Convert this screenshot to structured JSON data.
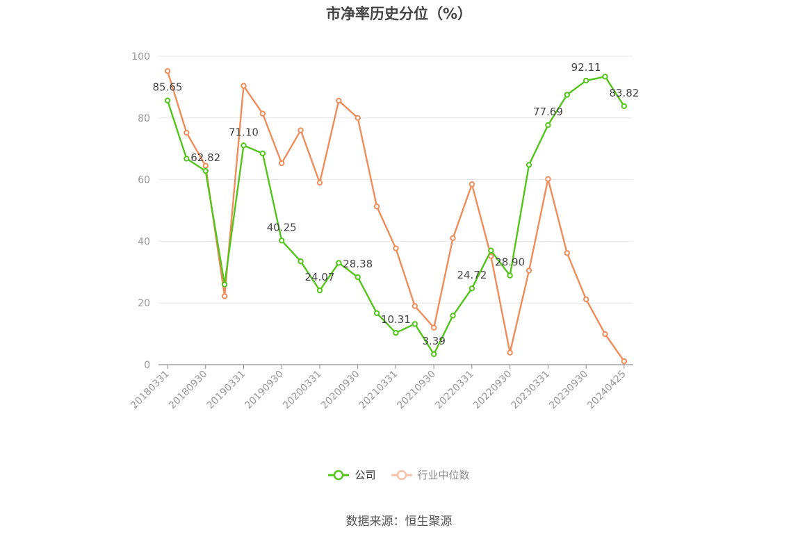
{
  "chart_data": {
    "type": "line",
    "title": "市净率历史分位（%）",
    "ylim": [
      0,
      100
    ],
    "yticks": [
      0,
      20,
      40,
      60,
      80,
      100
    ],
    "xtick_labels": [
      "20180331",
      "20180930",
      "20190331",
      "20190930",
      "20200331",
      "20200930",
      "20210331",
      "20210930",
      "20220331",
      "20220930",
      "20230331",
      "20230930",
      "20240425"
    ],
    "grid": true,
    "legend_position": "bottom",
    "series": [
      {
        "name": "公司",
        "color": "#52c41a",
        "values": [
          85.65,
          66.8,
          62.82,
          26.0,
          71.1,
          68.5,
          40.25,
          33.5,
          24.07,
          33.0,
          28.38,
          16.7,
          10.31,
          13.2,
          3.39,
          15.9,
          24.72,
          37.0,
          28.9,
          64.8,
          77.69,
          87.5,
          92.11,
          93.4,
          83.82
        ],
        "labels": {
          "0": "85.65",
          "2": "62.82",
          "4": "71.10",
          "6": "40.25",
          "8": "24.07",
          "10": "28.38",
          "12": "10.31",
          "14": "3.39",
          "16": "24.72",
          "18": "28.90",
          "20": "77.69",
          "22": "92.11",
          "24": "83.82"
        }
      },
      {
        "name": "行业中位数",
        "color": "#f08c5a",
        "values": [
          95.2,
          75.2,
          64.5,
          22.2,
          90.4,
          81.4,
          65.3,
          76.0,
          59.0,
          85.6,
          80.0,
          51.3,
          37.7,
          19.0,
          12.0,
          41.0,
          58.5,
          35.2,
          3.9,
          30.5,
          60.2,
          36.2,
          21.2,
          9.9,
          1.1
        ]
      }
    ]
  },
  "source": "数据来源：恒生聚源"
}
